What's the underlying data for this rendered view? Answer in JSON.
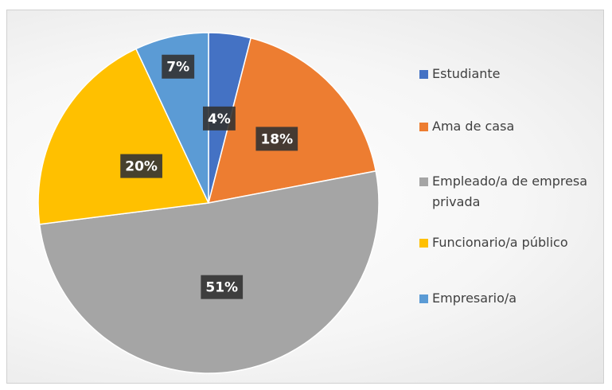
{
  "chart_data": {
    "type": "pie",
    "categories": [
      "Estudiante",
      "Ama de casa",
      "Empleado/a de empresa privada",
      "Funcionario/a público",
      "Empresario/a"
    ],
    "values": [
      4,
      18,
      51,
      20,
      7
    ],
    "value_labels": [
      "4%",
      "18%",
      "51%",
      "20%",
      "7%"
    ],
    "colors": [
      "#4472c4",
      "#ed7d31",
      "#a5a5a5",
      "#ffc000",
      "#5b9bd5"
    ],
    "legend": "right"
  }
}
